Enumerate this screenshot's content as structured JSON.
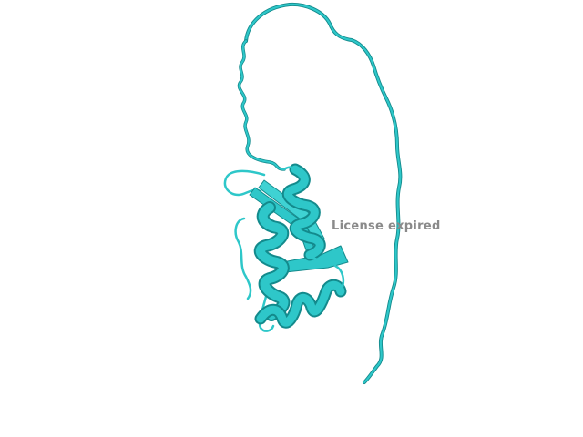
{
  "viewer": {
    "background_color": "#ffffff",
    "structure_color": "#2ec7c9",
    "structure_shadow_color": "#138a8c",
    "representation": "cartoon",
    "watermark_text": "License expired",
    "watermark_color": "#8a8a8a"
  }
}
